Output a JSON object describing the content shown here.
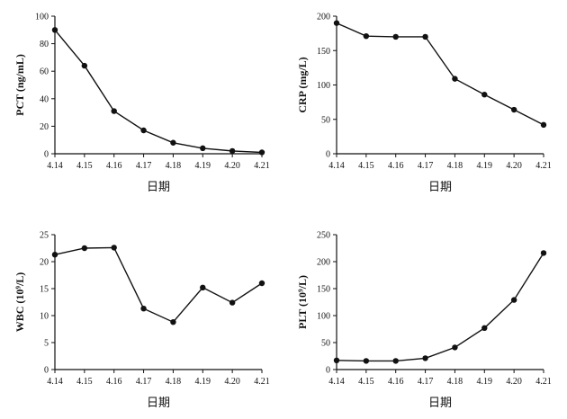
{
  "chart_data": [
    {
      "type": "line",
      "categories": [
        "4.14",
        "4.15",
        "4.16",
        "4.17",
        "4.18",
        "4.19",
        "4.20",
        "4.21"
      ],
      "ylabel": "PCT (ng/mL)",
      "xlabel": "日期",
      "ylim": [
        0,
        100
      ],
      "yticks": [
        0,
        20,
        40,
        60,
        80,
        100
      ],
      "series": [
        {
          "values": [
            90,
            64,
            31,
            17,
            8,
            4,
            2,
            1
          ]
        }
      ]
    },
    {
      "type": "line",
      "categories": [
        "4.14",
        "4.15",
        "4.16",
        "4.17",
        "4.18",
        "4.19",
        "4.20",
        "4.21"
      ],
      "ylabel": "CRP (mg/L)",
      "xlabel": "日期",
      "ylim": [
        0,
        200
      ],
      "yticks": [
        0,
        50,
        100,
        150,
        200
      ],
      "series": [
        {
          "values": [
            190,
            171,
            170,
            170,
            109,
            86,
            64,
            42
          ]
        }
      ]
    },
    {
      "type": "line",
      "categories": [
        "4.14",
        "4.15",
        "4.16",
        "4.17",
        "4.18",
        "4.19",
        "4.20",
        "4.21"
      ],
      "ylabel": "WBC (10⁹/L)",
      "xlabel": "日期",
      "ylim": [
        0,
        25
      ],
      "yticks": [
        0,
        5,
        10,
        15,
        20,
        25
      ],
      "series": [
        {
          "values": [
            21.3,
            22.5,
            22.6,
            11.3,
            8.8,
            15.2,
            12.4,
            16
          ]
        }
      ]
    },
    {
      "type": "line",
      "categories": [
        "4.14",
        "4.15",
        "4.16",
        "4.17",
        "4.18",
        "4.19",
        "4.20",
        "4.21"
      ],
      "ylabel": "PLT (10⁹/L)",
      "xlabel": "日期",
      "ylim": [
        0,
        250
      ],
      "yticks": [
        0,
        50,
        100,
        150,
        200,
        250
      ],
      "series": [
        {
          "values": [
            17,
            16,
            16,
            21,
            41,
            77,
            129,
            216
          ]
        }
      ]
    }
  ]
}
